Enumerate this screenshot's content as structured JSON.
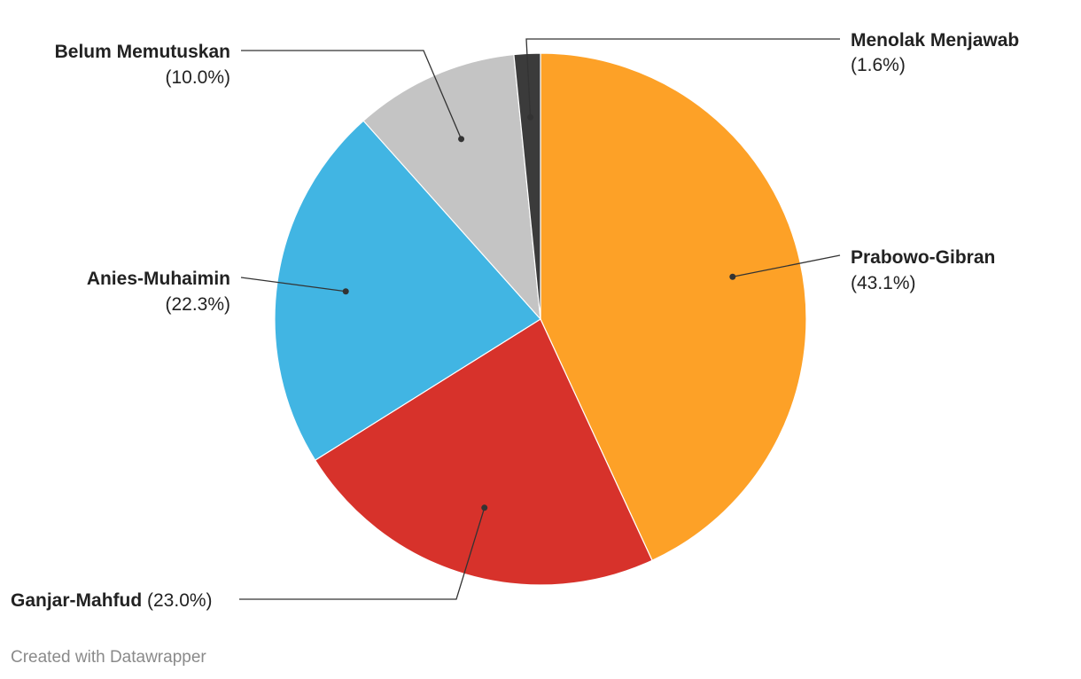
{
  "chart_data": {
    "type": "pie",
    "slices": [
      {
        "label": "Prabowo-Gibran",
        "value": 43.1,
        "value_label": "(43.1%)",
        "color": "#fda127"
      },
      {
        "label": "Ganjar-Mahfud",
        "value": 23.0,
        "value_label": "(23.0%)",
        "color": "#d7322b"
      },
      {
        "label": "Anies-Muhaimin",
        "value": 22.3,
        "value_label": "(22.3%)",
        "color": "#41b5e3"
      },
      {
        "label": "Belum Memutuskan",
        "value": 10.0,
        "value_label": "(10.0%)",
        "color": "#c4c4c4"
      },
      {
        "label": "Menolak Menjawab",
        "value": 1.6,
        "value_label": "(1.6%)",
        "color": "#3b3b3b"
      }
    ]
  },
  "footer": {
    "credit": "Created with Datawrapper"
  }
}
